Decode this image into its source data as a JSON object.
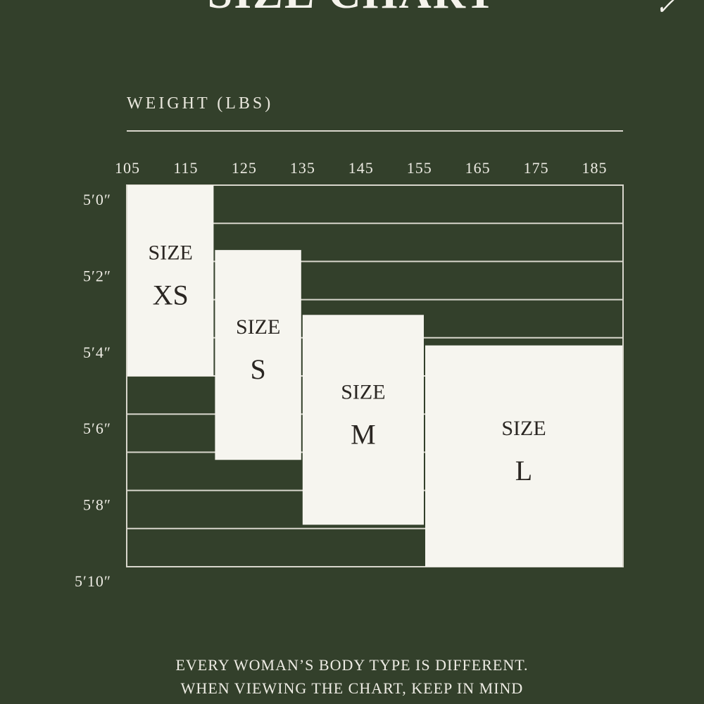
{
  "title": "SIZE CHART",
  "corner_mark": "✓",
  "weight_axis_label": "WEIGHT (LBS)",
  "disclaimer_lines": [
    "EVERY WOMAN’S BODY TYPE IS DIFFERENT.",
    "WHEN VIEWING THE CHART, KEEP IN MIND"
  ],
  "colors": {
    "background": "#33402b",
    "box": "#f6f5ef",
    "line": "#d8d6cc",
    "text_dark": "#2a2622",
    "text_light": "#eeece4"
  },
  "chart_data": {
    "type": "table",
    "x": {
      "label": "WEIGHT (LBS)",
      "ticks": [
        105,
        115,
        125,
        135,
        145,
        155,
        165,
        175,
        185
      ],
      "range": [
        105,
        190
      ]
    },
    "y": {
      "tick_labels": [
        "5′0″",
        "5′2″",
        "5′4″",
        "5′6″",
        "5′8″",
        "5′10″"
      ],
      "tick_values": [
        60,
        62,
        64,
        66,
        68,
        70
      ],
      "unit": "inches",
      "range": [
        60,
        70
      ]
    },
    "sizes": [
      {
        "prefix": "SIZE",
        "name": "XS",
        "weight_range": [
          105,
          120
        ],
        "height_range_in": [
          60,
          65
        ]
      },
      {
        "prefix": "SIZE",
        "name": "S",
        "weight_range": [
          120,
          135
        ],
        "height_range_in": [
          61.7,
          67.2
        ]
      },
      {
        "prefix": "SIZE",
        "name": "M",
        "weight_range": [
          135,
          156
        ],
        "height_range_in": [
          63.4,
          68.9
        ]
      },
      {
        "prefix": "SIZE",
        "name": "L",
        "weight_range": [
          156,
          190
        ],
        "height_range_in": [
          64.2,
          70
        ]
      }
    ]
  }
}
